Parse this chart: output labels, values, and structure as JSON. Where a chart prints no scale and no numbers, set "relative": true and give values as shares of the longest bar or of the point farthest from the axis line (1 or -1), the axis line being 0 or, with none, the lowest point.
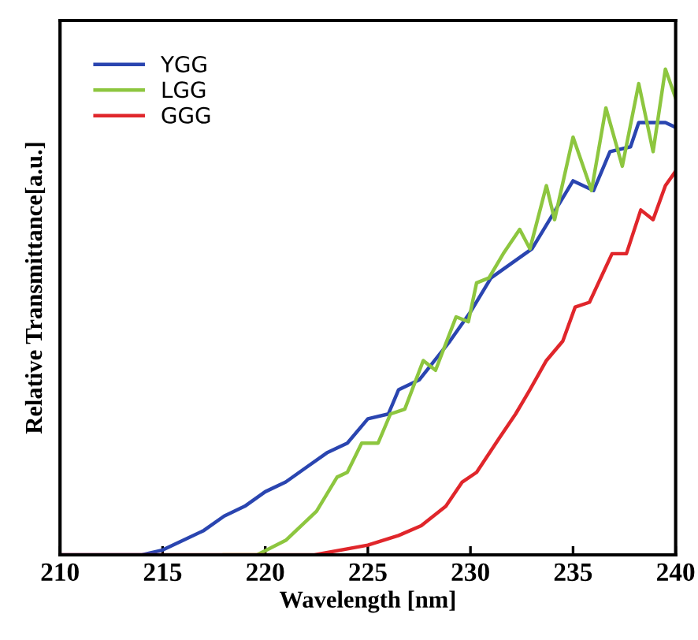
{
  "chart_data": {
    "type": "line",
    "xlabel": "Wavelength [nm]",
    "ylabel": "Relative Transmittance[a.u.]",
    "relative": true,
    "xlim": [
      210,
      240
    ],
    "xticks": [
      210,
      215,
      220,
      225,
      230,
      235,
      240
    ],
    "legend": "top left",
    "grid": false,
    "series": [
      {
        "name": "YGG",
        "color": "#2a45b0",
        "x": [
          210,
          214,
          215,
          216,
          217,
          218,
          219,
          220,
          221,
          222,
          223,
          224,
          225,
          226,
          226.5,
          227.5,
          229,
          230,
          231,
          232,
          233,
          234,
          235,
          236,
          236.8,
          237.8,
          238.2,
          239.5,
          240
        ],
        "values": [
          0,
          0,
          0.01,
          0.03,
          0.05,
          0.08,
          0.1,
          0.13,
          0.15,
          0.18,
          0.21,
          0.23,
          0.28,
          0.29,
          0.34,
          0.36,
          0.44,
          0.5,
          0.57,
          0.6,
          0.63,
          0.7,
          0.77,
          0.75,
          0.83,
          0.84,
          0.89,
          0.89,
          0.88
        ]
      },
      {
        "name": "LGG",
        "color": "#8dc63f",
        "x": [
          218,
          219.6,
          221.0,
          222.5,
          223.5,
          224.0,
          224.7,
          225.5,
          226.1,
          226.8,
          227.7,
          228.3,
          229.3,
          229.9,
          230.3,
          230.9,
          231.6,
          232.4,
          232.9,
          233.7,
          234.1,
          235.0,
          235.9,
          236.6,
          237.4,
          238.2,
          238.9,
          239.5,
          240
        ],
        "values": [
          0,
          0,
          0.03,
          0.09,
          0.16,
          0.17,
          0.23,
          0.23,
          0.29,
          0.3,
          0.4,
          0.38,
          0.49,
          0.48,
          0.56,
          0.57,
          0.62,
          0.67,
          0.63,
          0.76,
          0.69,
          0.86,
          0.75,
          0.92,
          0.8,
          0.97,
          0.83,
          1.0,
          0.94
        ]
      },
      {
        "name": "GGG",
        "color": "#e0262b",
        "x": [
          210,
          222.4,
          225,
          226.5,
          227.6,
          228.8,
          229.6,
          230.3,
          231.4,
          232.2,
          232.9,
          233.7,
          234.5,
          235.1,
          235.8,
          236.9,
          237.6,
          238.3,
          238.9,
          239.5,
          240
        ],
        "values": [
          0,
          0,
          0.02,
          0.04,
          0.06,
          0.1,
          0.15,
          0.17,
          0.24,
          0.29,
          0.34,
          0.4,
          0.44,
          0.51,
          0.52,
          0.62,
          0.62,
          0.71,
          0.69,
          0.76,
          0.79
        ]
      }
    ]
  }
}
